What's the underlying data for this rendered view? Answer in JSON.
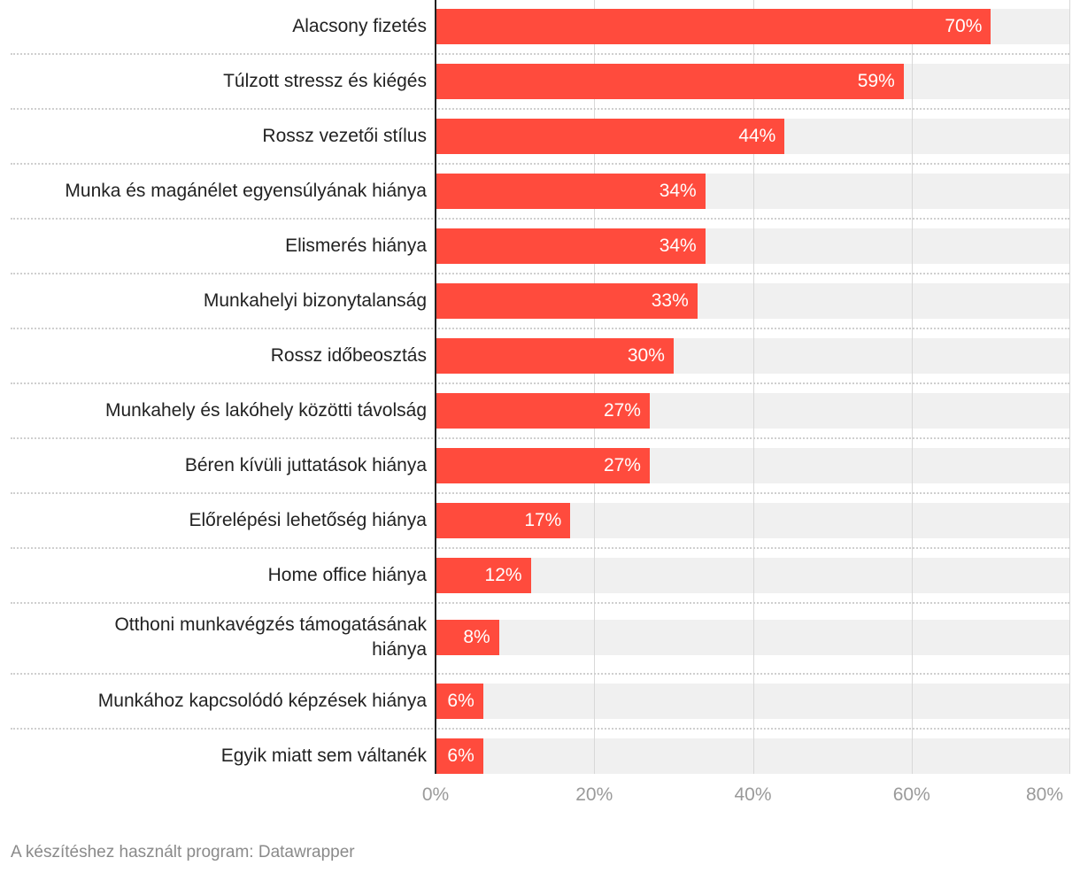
{
  "chart_data": {
    "type": "bar",
    "orientation": "horizontal",
    "categories": [
      "Alacsony fizetés",
      "Túlzott stressz és kiégés",
      "Rossz vezetői stílus",
      "Munka és magánélet egyensúlyának hiánya",
      "Elismerés hiánya",
      "Munkahelyi bizonytalanság",
      "Rossz időbeosztás",
      "Munkahely és lakóhely közötti távolság",
      "Béren kívüli juttatások hiánya",
      "Előrelépési lehetőség hiánya",
      "Home office hiánya",
      "Otthoni munkavégzés támogatásának hiánya",
      "Munkához kapcsolódó képzések hiánya",
      "Egyik miatt sem váltanék"
    ],
    "values": [
      70,
      59,
      44,
      34,
      34,
      33,
      30,
      27,
      27,
      17,
      12,
      8,
      6,
      6
    ],
    "value_labels": [
      "70%",
      "59%",
      "44%",
      "34%",
      "34%",
      "33%",
      "30%",
      "27%",
      "27%",
      "17%",
      "12%",
      "8%",
      "6%",
      "6%"
    ],
    "xlim": [
      0,
      80
    ],
    "x_ticks": [
      0,
      20,
      40,
      60,
      80
    ],
    "x_tick_labels": [
      "0%",
      "20%",
      "40%",
      "60%",
      "80%"
    ],
    "title": "",
    "xlabel": "",
    "ylabel": "",
    "grid": true,
    "bar_color": "#ff4b3d",
    "track_color": "#f0f0f0"
  },
  "footer": {
    "credit": "A készítéshez használt program: Datawrapper"
  }
}
